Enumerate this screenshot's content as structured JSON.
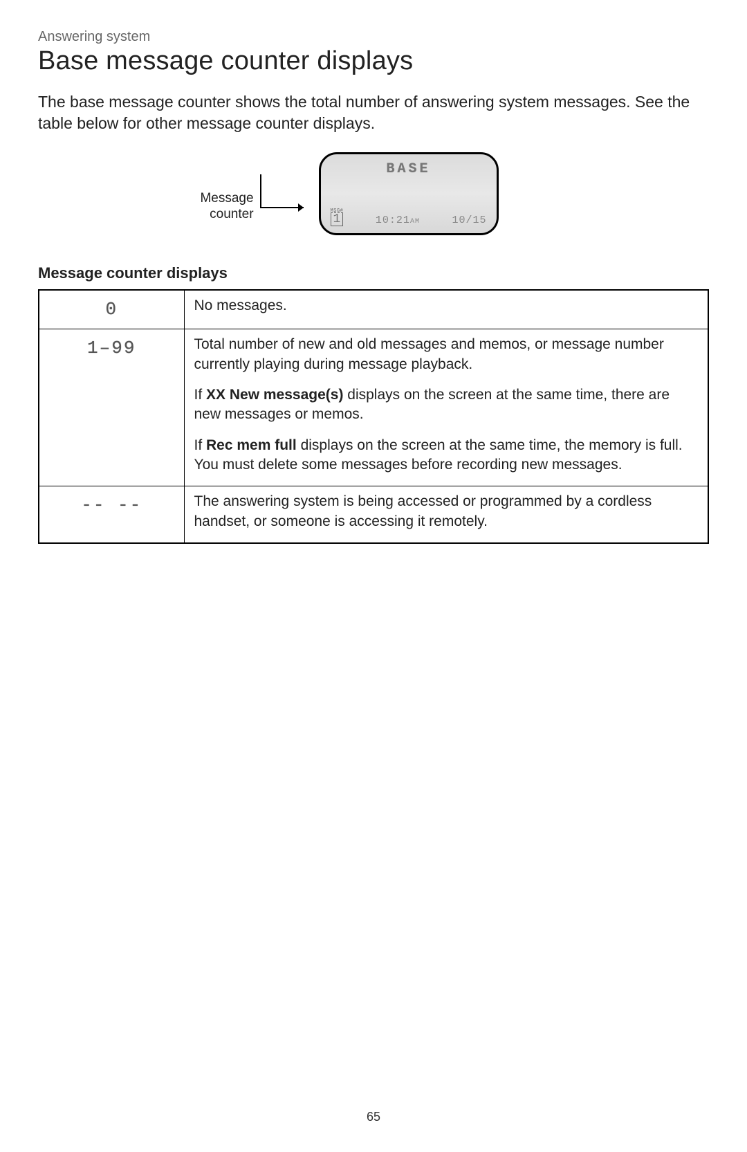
{
  "header": {
    "section_label": "Answering system",
    "title": "Base message counter displays"
  },
  "intro_text": "The base message counter shows the total number of answering system messages. See the table below for other message counter displays.",
  "diagram": {
    "callout_line1": "Message",
    "callout_line2": "counter",
    "lcd_title": "BASE",
    "msg_tag": "MSG#",
    "msg_value": "1",
    "time_value": "10:21",
    "time_suffix": "AM",
    "date_value": "10/15"
  },
  "table": {
    "heading": "Message counter displays",
    "rows": [
      {
        "symbol": "0",
        "paragraphs": [
          {
            "segments": [
              {
                "text": "No messages."
              }
            ]
          }
        ]
      },
      {
        "symbol": "1–99",
        "paragraphs": [
          {
            "segments": [
              {
                "text": "Total number of new and old messages and memos, or message number currently playing during message playback."
              }
            ]
          },
          {
            "segments": [
              {
                "text": "If "
              },
              {
                "text": "XX New message(s)",
                "bold": true
              },
              {
                "text": " displays on the screen at the same time, there are new messages or memos."
              }
            ]
          },
          {
            "segments": [
              {
                "text": "If "
              },
              {
                "text": "Rec mem full",
                "bold": true
              },
              {
                "text": " displays on the screen at the same time, the memory is full. You must delete some messages before recording new messages."
              }
            ]
          }
        ]
      },
      {
        "symbol": "--  --",
        "paragraphs": [
          {
            "segments": [
              {
                "text": "The answering system is being accessed or programmed by a cordless handset, or someone is accessing it remotely."
              }
            ]
          }
        ]
      }
    ]
  },
  "page_number": "65"
}
